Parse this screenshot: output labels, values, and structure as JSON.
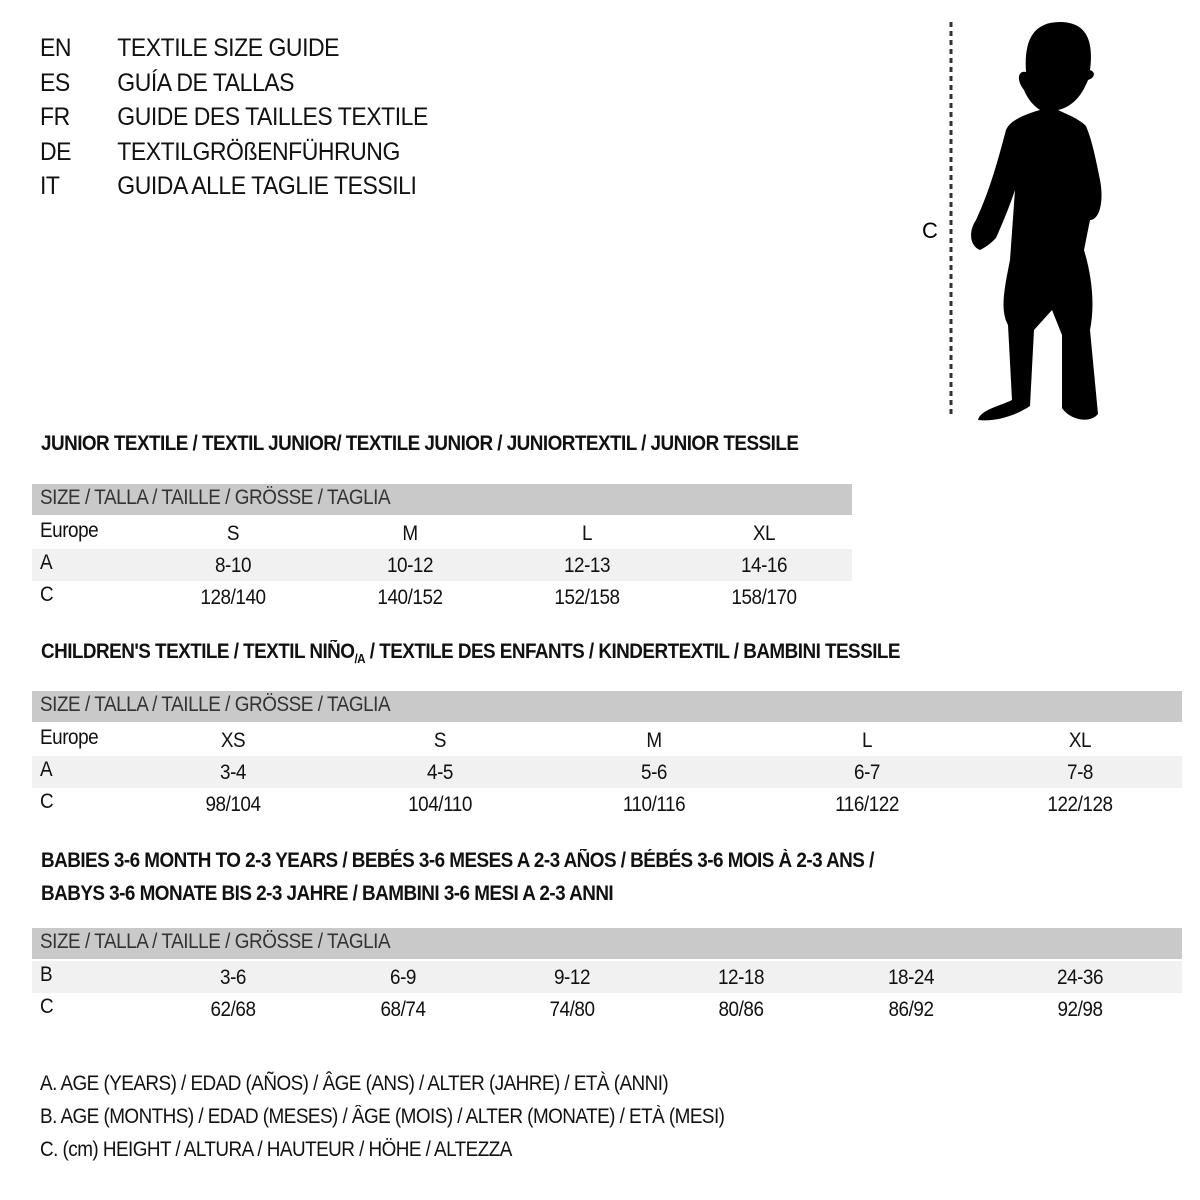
{
  "titles": [
    {
      "code": "EN",
      "text": "TEXTILE SIZE GUIDE"
    },
    {
      "code": "ES",
      "text": "GUÍA DE TALLAS"
    },
    {
      "code": "FR",
      "text": "GUIDE DES TAILLES TEXTILE"
    },
    {
      "code": "DE",
      "text": "TEXTILGRÖßENFÜHRUNG"
    },
    {
      "code": "IT",
      "text": "GUIDA ALLE TAGLIE TESSILI"
    }
  ],
  "figure": {
    "measure_label": "C",
    "icon": "child-silhouette-icon"
  },
  "junior": {
    "heading": "JUNIOR TEXTILE / TEXTIL JUNIOR/ TEXTILE JUNIOR / JUNIORTEXTIL / JUNIOR TESSILE",
    "header": "SIZE / TALLA / TAILLE / GRÖSSE / TAGLIA",
    "rows": [
      {
        "label": "Europe",
        "values": [
          "S",
          "M",
          "L",
          "XL"
        ]
      },
      {
        "label": "A",
        "values": [
          "8-10",
          "10-12",
          "12-13",
          "14-16"
        ]
      },
      {
        "label": "C",
        "values": [
          "128/140",
          "140/152",
          "152/158",
          "158/170"
        ]
      }
    ]
  },
  "children": {
    "heading_pre": "CHILDREN'S TEXTILE / TEXTIL NIÑO",
    "heading_sub": "/A",
    "heading_post": " / TEXTILE DES ENFANTS / KINDERTEXTIL / BAMBINI TESSILE",
    "header": "SIZE / TALLA / TAILLE / GRÖSSE / TAGLIA",
    "rows": [
      {
        "label": "Europe",
        "values": [
          "XS",
          "S",
          "M",
          "L",
          "XL"
        ]
      },
      {
        "label": "A",
        "values": [
          "3-4",
          "4-5",
          "5-6",
          "6-7",
          "7-8"
        ]
      },
      {
        "label": "C",
        "values": [
          "98/104",
          "104/110",
          "110/116",
          "116/122",
          "122/128"
        ]
      }
    ]
  },
  "babies": {
    "heading_line1": "BABIES 3-6 MONTH TO 2-3 YEARS / BEBÉS 3-6 MESES A 2-3 AÑOS / BÉBÉS 3-6 MOIS À 2-3 ANS /",
    "heading_line2": "BABYS 3-6 MONATE BIS 2-3 JAHRE / BAMBINI 3-6 MESI A 2-3 ANNI",
    "header": "SIZE / TALLA / TAILLE / GRÖSSE / TAGLIA",
    "rows": [
      {
        "label": "B",
        "values": [
          "3-6",
          "6-9",
          "9-12",
          "12-18",
          "18-24",
          "24-36"
        ]
      },
      {
        "label": "C",
        "values": [
          "62/68",
          "68/74",
          "74/80",
          "80/86",
          "86/92",
          "92/98"
        ]
      }
    ]
  },
  "legend": [
    "A. AGE (YEARS) / EDAD (AÑOS) / ÂGE (ANS) / ALTER (JAHRE) / ETÀ (ANNI)",
    "B. AGE (MONTHS) / EDAD (MESES) / ÂGE (MOIS) / ALTER (MONATE) / ETÀ (MESI)",
    "C. (cm) HEIGHT / ALTURA / HAUTEUR / HÖHE / ALTEZZA"
  ],
  "colors": {
    "header_bg": "#c9c9c9",
    "alt_row_bg": "#f1f1f1",
    "text": "#111111"
  }
}
